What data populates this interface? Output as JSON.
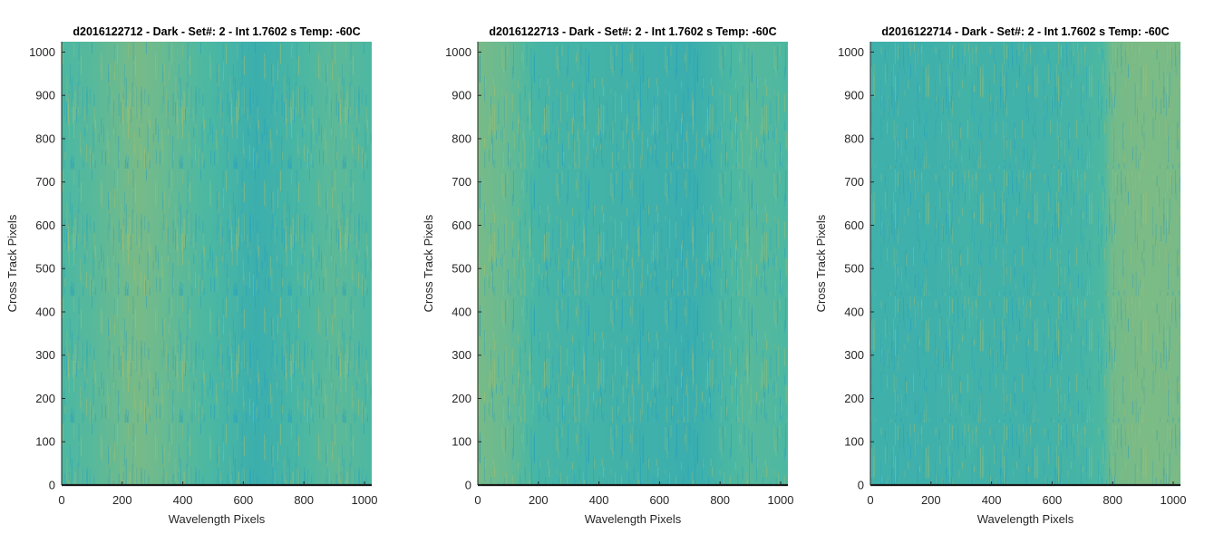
{
  "chart_data": [
    {
      "type": "heatmap",
      "title": "d2016122712 - Dark - Set#: 2 - Int 1.7602 s Temp: -60C",
      "xlabel": "Wavelength Pixels",
      "ylabel": "Cross Track Pixels",
      "xlim": [
        0,
        1024
      ],
      "ylim": [
        0,
        1024
      ],
      "x_ticks": [
        0,
        200,
        400,
        600,
        800,
        1000
      ],
      "y_ticks": [
        0,
        100,
        200,
        300,
        400,
        500,
        600,
        700,
        800,
        900,
        1000
      ],
      "grid": false,
      "colormap": "parula",
      "column_profile": {
        "x": [
          0,
          100,
          250,
          350,
          450,
          550,
          650,
          750,
          900,
          1024
        ],
        "level": [
          0.5,
          0.55,
          0.7,
          0.62,
          0.52,
          0.45,
          0.35,
          0.45,
          0.58,
          0.5
        ]
      }
    },
    {
      "type": "heatmap",
      "title": "d2016122713 - Dark - Set#: 2 - Int 1.7602 s Temp: -60C",
      "xlabel": "Wavelength Pixels",
      "ylabel": "Cross Track Pixels",
      "xlim": [
        0,
        1024
      ],
      "ylim": [
        0,
        1024
      ],
      "x_ticks": [
        0,
        200,
        400,
        600,
        800,
        1000
      ],
      "y_ticks": [
        0,
        100,
        200,
        300,
        400,
        500,
        600,
        700,
        800,
        900,
        1000
      ],
      "grid": false,
      "colormap": "parula",
      "column_profile": {
        "x": [
          0,
          100,
          200,
          400,
          600,
          700,
          800,
          900,
          1024
        ],
        "level": [
          0.7,
          0.62,
          0.45,
          0.42,
          0.38,
          0.34,
          0.45,
          0.55,
          0.5
        ]
      }
    },
    {
      "type": "heatmap",
      "title": "d2016122714 - Dark - Set#: 2 - Int 1.7602 s Temp: -60C",
      "xlabel": "Wavelength Pixels",
      "ylabel": "Cross Track Pixels",
      "xlim": [
        0,
        1024
      ],
      "ylim": [
        0,
        1024
      ],
      "x_ticks": [
        0,
        200,
        400,
        600,
        800,
        1000
      ],
      "y_ticks": [
        0,
        100,
        200,
        300,
        400,
        500,
        600,
        700,
        800,
        900,
        1000
      ],
      "grid": false,
      "colormap": "parula",
      "column_profile": {
        "x": [
          0,
          150,
          300,
          500,
          700,
          770,
          800,
          900,
          1024
        ],
        "level": [
          0.4,
          0.38,
          0.42,
          0.4,
          0.45,
          0.5,
          0.68,
          0.72,
          0.7
        ]
      }
    }
  ],
  "colors": {
    "parula_low": "#1497c8",
    "parula_mid": "#4cb8a2",
    "parula_high": "#b9be60",
    "axis": "#262626",
    "x_axis_line": "#1a1a1a",
    "text": "#262626",
    "title": "#000000"
  }
}
